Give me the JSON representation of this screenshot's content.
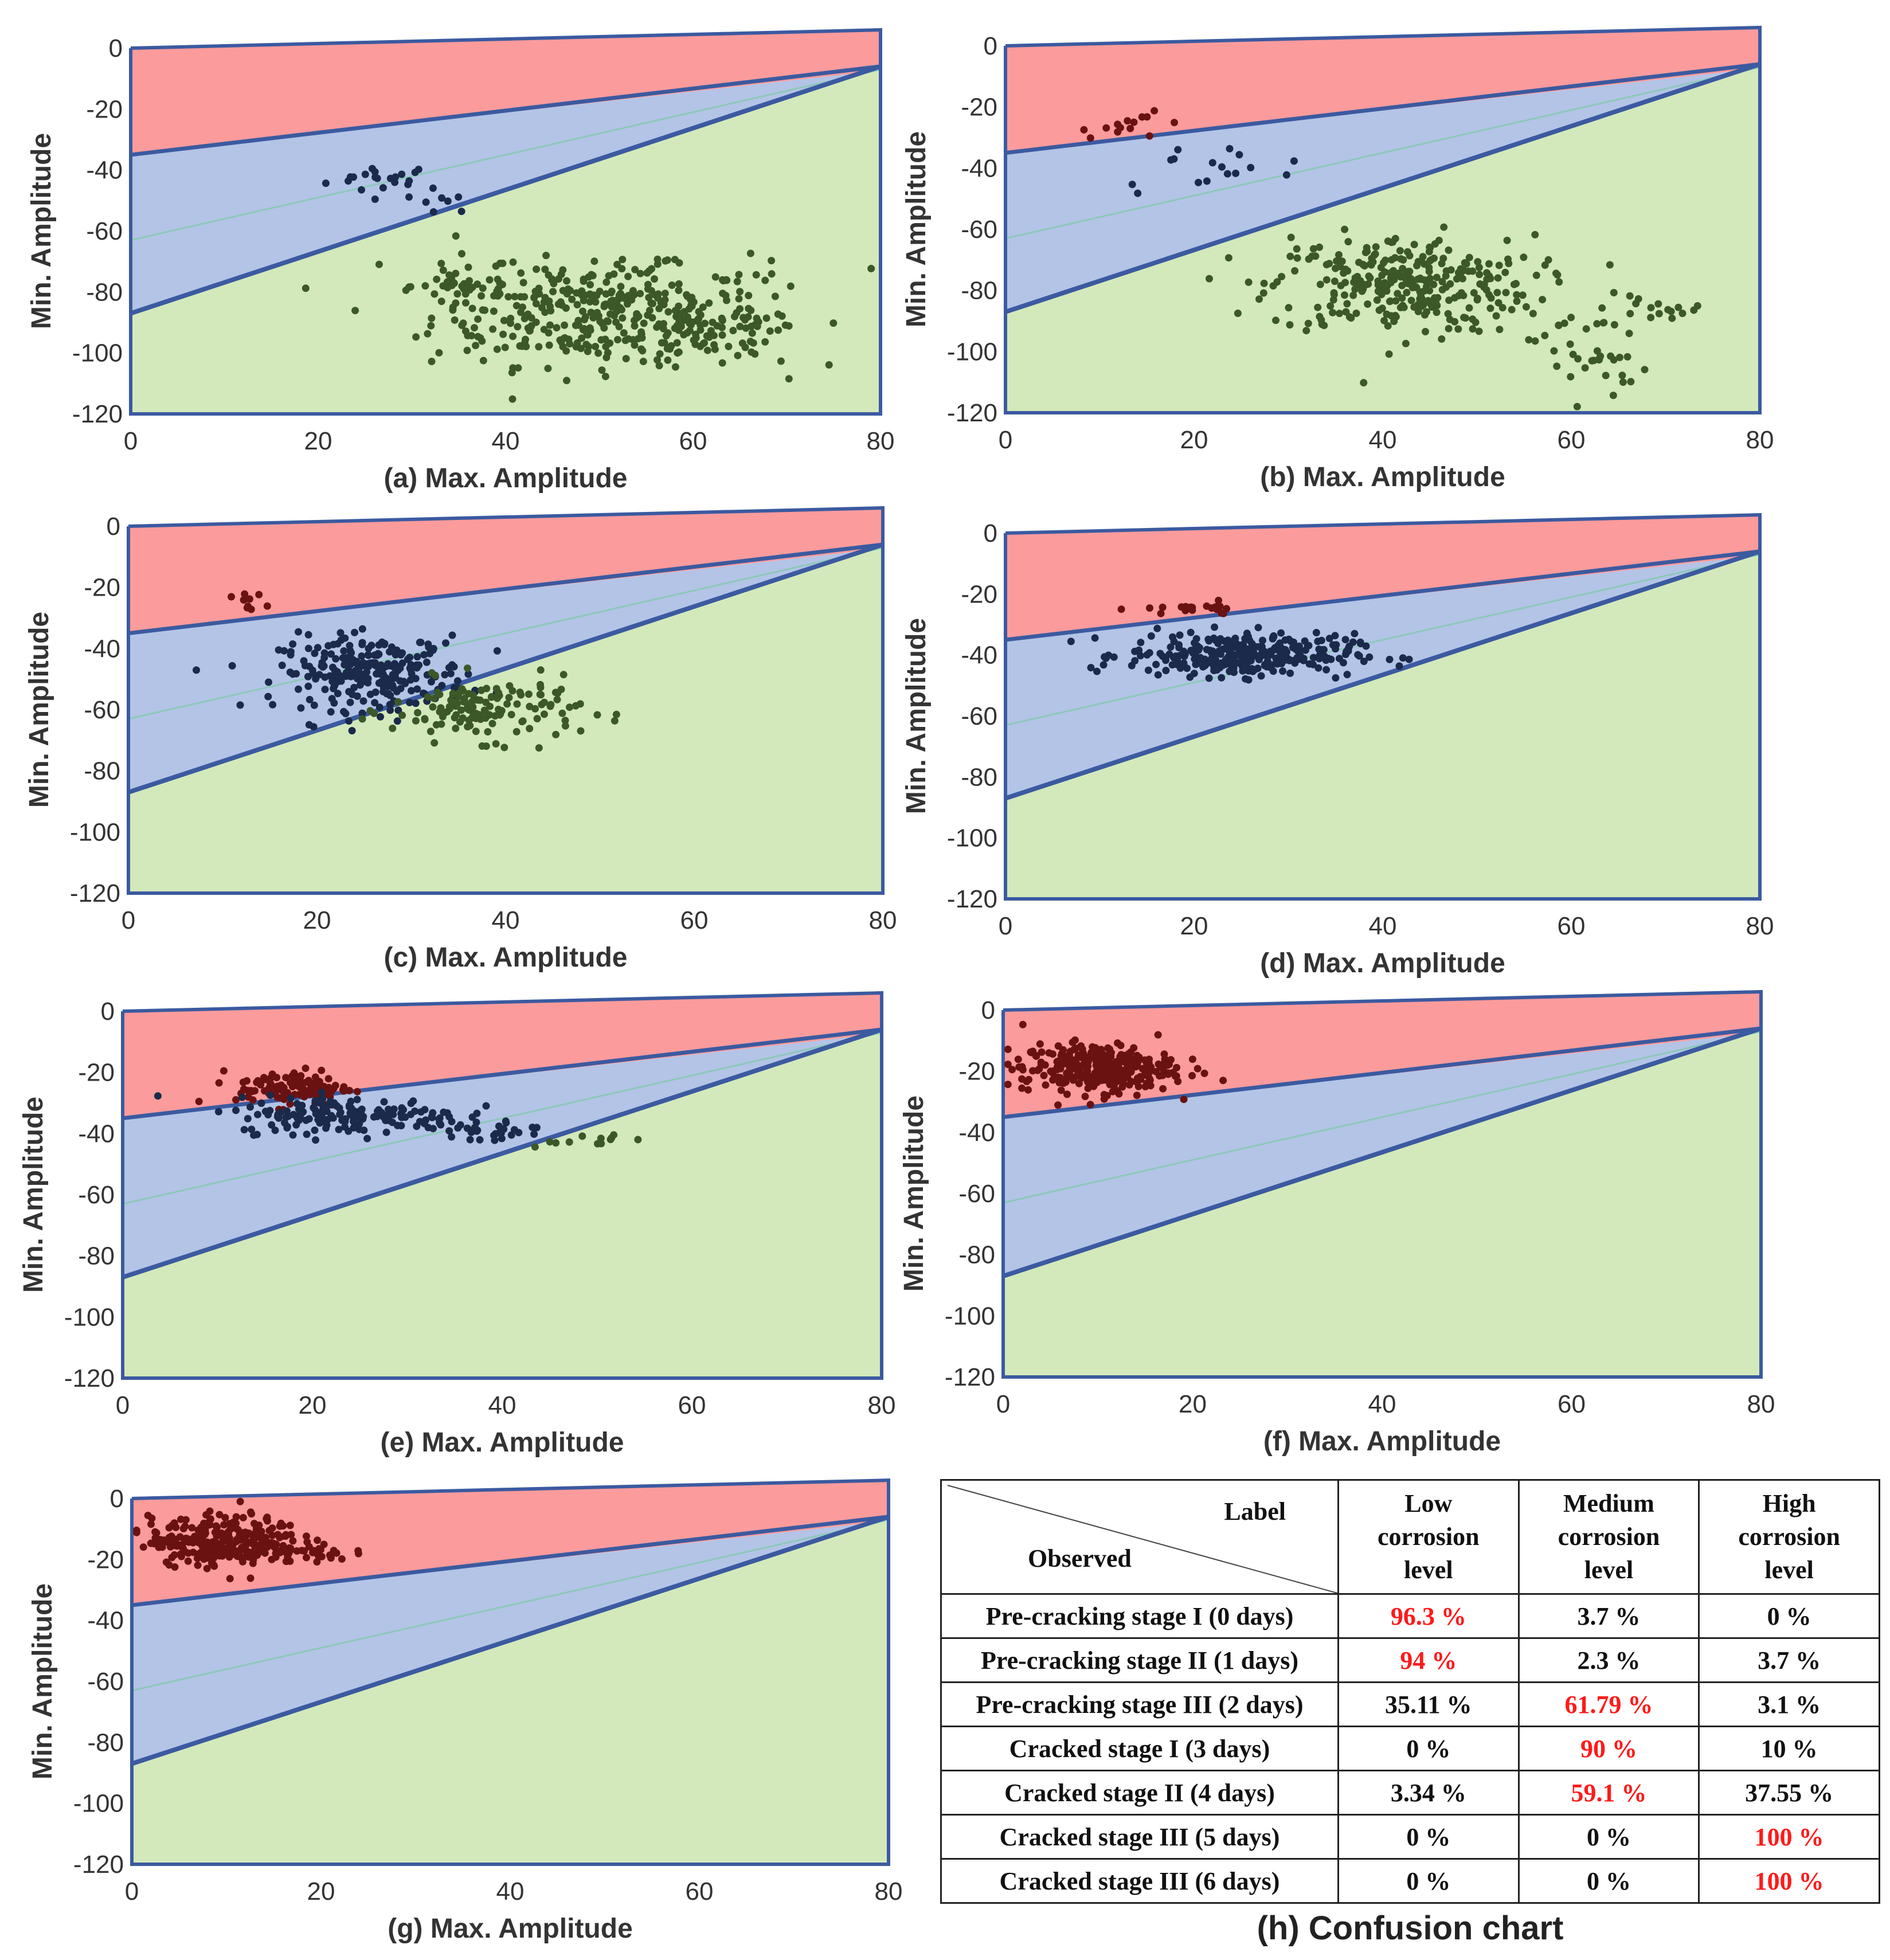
{
  "region_colors": {
    "high": "#fb9b9c",
    "medium": "#b3c4e6",
    "low": "#d3e9bb",
    "boundary": "#3b5aa0",
    "diag": "#8cc9b8",
    "pts_green": "#3c5828",
    "pts_navy": "#1b2a4a",
    "pts_red": "#6a1212"
  },
  "chart_data": [
    {
      "type": "scatter",
      "title": "",
      "xlabel": "(a) Max. Amplitude",
      "ylabel": "Min. Amplitude",
      "xlim": [
        0,
        80
      ],
      "ylim": [
        -120,
        0
      ],
      "xticks": [
        "0",
        "20",
        "40",
        "60",
        "80"
      ],
      "yticks": [
        "0",
        "-20",
        "-40",
        "-60",
        "-80",
        "-100",
        "-120"
      ],
      "regions": [
        "High corrosion level",
        "Medium corrosion level",
        "Low corrosion level"
      ],
      "clusters": [
        {
          "class": "medium",
          "cx": 27,
          "cy": -43,
          "sx": 3,
          "sy": 2.5,
          "n": 20
        },
        {
          "class": "medium",
          "cx": 33,
          "cy": -50,
          "sx": 2,
          "sy": 2,
          "n": 8
        },
        {
          "class": "low",
          "cx": 50,
          "cy": -88,
          "sx": 9,
          "sy": 8,
          "n": 320
        },
        {
          "class": "low",
          "cx": 36,
          "cy": -78,
          "sx": 3,
          "sy": 5,
          "n": 40
        },
        {
          "class": "low",
          "cx": 62,
          "cy": -95,
          "sx": 5,
          "sy": 5,
          "n": 60
        },
        {
          "class": "low",
          "cx": 55,
          "cy": -75,
          "sx": 10,
          "sy": 4,
          "n": 40
        }
      ]
    },
    {
      "type": "scatter",
      "title": "",
      "xlabel": "(b) Max. Amplitude",
      "ylabel": "Min. Amplitude",
      "xlim": [
        0,
        80
      ],
      "ylim": [
        -120,
        0
      ],
      "xticks": [
        "0",
        "20",
        "40",
        "60",
        "80"
      ],
      "yticks": [
        "0",
        "-20",
        "-40",
        "-60",
        "-80",
        "-100",
        "-120"
      ],
      "regions": [
        "High corrosion level",
        "Medium corrosion level",
        "Low corrosion level"
      ],
      "clusters": [
        {
          "class": "high",
          "cx": 14,
          "cy": -26,
          "sx": 3,
          "sy": 2,
          "n": 14
        },
        {
          "class": "medium",
          "cx": 22,
          "cy": -40,
          "sx": 6,
          "sy": 4,
          "n": 16
        },
        {
          "class": "low",
          "cx": 42,
          "cy": -78,
          "sx": 7,
          "sy": 8,
          "n": 300
        },
        {
          "class": "low",
          "cx": 62,
          "cy": -100,
          "sx": 3,
          "sy": 9,
          "n": 40
        },
        {
          "class": "low",
          "cx": 70,
          "cy": -86,
          "sx": 3,
          "sy": 2,
          "n": 14
        }
      ]
    },
    {
      "type": "scatter",
      "title": "",
      "xlabel": "(c) Max. Amplitude",
      "ylabel": "Min. Amplitude",
      "xlim": [
        0,
        80
      ],
      "ylim": [
        -120,
        0
      ],
      "xticks": [
        "0",
        "20",
        "40",
        "60",
        "80"
      ],
      "yticks": [
        "0",
        "-20",
        "-40",
        "-60",
        "-80",
        "-100",
        "-120"
      ],
      "regions": [
        "High corrosion level",
        "Medium corrosion level",
        "Low corrosion level"
      ],
      "clusters": [
        {
          "class": "high",
          "cx": 13,
          "cy": -26,
          "sx": 1,
          "sy": 2,
          "n": 10
        },
        {
          "class": "medium",
          "cx": 26,
          "cy": -48,
          "sx": 5,
          "sy": 6,
          "n": 260
        },
        {
          "class": "low",
          "cx": 38,
          "cy": -60,
          "sx": 5,
          "sy": 5,
          "n": 140
        }
      ]
    },
    {
      "type": "scatter",
      "title": "",
      "xlabel": "(d) Max. Amplitude",
      "ylabel": "Min. Amplitude",
      "xlim": [
        0,
        80
      ],
      "ylim": [
        -120,
        0
      ],
      "xticks": [
        "0",
        "20",
        "40",
        "60",
        "80"
      ],
      "yticks": [
        "0",
        "-20",
        "-40",
        "-60",
        "-80",
        "-100",
        "-120"
      ],
      "regions": [
        "High corrosion level",
        "Medium corrosion level",
        "Low corrosion level"
      ],
      "clusters": [
        {
          "class": "high",
          "cx": 20,
          "cy": -25,
          "sx": 3,
          "sy": 1,
          "n": 20
        },
        {
          "class": "medium",
          "cx": 25,
          "cy": -40,
          "sx": 6,
          "sy": 3.5,
          "n": 320
        }
      ]
    },
    {
      "type": "scatter",
      "title": "",
      "xlabel": "(e) Max. Amplitude",
      "ylabel": "Min. Amplitude",
      "xlim": [
        0,
        80
      ],
      "ylim": [
        -120,
        0
      ],
      "xticks": [
        "0",
        "20",
        "40",
        "60",
        "80"
      ],
      "yticks": [
        "0",
        "-20",
        "-40",
        "-60",
        "-80",
        "-100",
        "-120"
      ],
      "regions": [
        "High corrosion level",
        "Medium corrosion level",
        "Low corrosion level"
      ],
      "clusters": [
        {
          "class": "high",
          "cx": 18,
          "cy": -25,
          "sx": 3,
          "sy": 3,
          "n": 110
        },
        {
          "class": "medium",
          "cx": 24,
          "cy": -34,
          "sx": 6,
          "sy": 3,
          "n": 180
        },
        {
          "class": "medium",
          "cx": 38,
          "cy": -39,
          "sx": 4,
          "sy": 2,
          "n": 30
        },
        {
          "class": "low",
          "cx": 48,
          "cy": -42,
          "sx": 3,
          "sy": 1,
          "n": 12
        }
      ]
    },
    {
      "type": "scatter",
      "title": "",
      "xlabel": "(f) Max. Amplitude",
      "ylabel": "Min. Amplitude",
      "xlim": [
        0,
        80
      ],
      "ylim": [
        -120,
        0
      ],
      "xticks": [
        "0",
        "20",
        "40",
        "60",
        "80"
      ],
      "yticks": [
        "0",
        "-20",
        "-40",
        "-60",
        "-80",
        "-100",
        "-120"
      ],
      "regions": [
        "High corrosion level",
        "Medium corrosion level",
        "Low corrosion level"
      ],
      "clusters": [
        {
          "class": "high",
          "cx": 10,
          "cy": -19,
          "sx": 4,
          "sy": 4,
          "n": 320
        }
      ]
    },
    {
      "type": "scatter",
      "title": "",
      "xlabel": "(g) Max. Amplitude",
      "ylabel": "Min. Amplitude",
      "xlim": [
        0,
        80
      ],
      "ylim": [
        -120,
        0
      ],
      "xticks": [
        "0",
        "20",
        "40",
        "60",
        "80"
      ],
      "yticks": [
        "0",
        "-20",
        "-40",
        "-60",
        "-80",
        "-100",
        "-120"
      ],
      "regions": [
        "High corrosion level",
        "Medium corrosion level",
        "Low corrosion level"
      ],
      "clusters": [
        {
          "class": "high",
          "cx": 10,
          "cy": -14,
          "sx": 4,
          "sy": 4,
          "n": 300
        },
        {
          "class": "high",
          "cx": 19,
          "cy": -18,
          "sx": 2,
          "sy": 1,
          "n": 20
        }
      ]
    },
    {
      "type": "table",
      "title": "(h) Confusion chart",
      "corner_label": "Label",
      "corner_observed": "Observed",
      "columns": [
        [
          "Low",
          "corrosion",
          "level"
        ],
        [
          "Medium",
          "corrosion",
          "level"
        ],
        [
          "High",
          "corrosion",
          "level"
        ]
      ],
      "rows": [
        {
          "label": "Pre-cracking stage I (0 days)",
          "values": [
            "96.3 %",
            "3.7 %",
            "0 %"
          ],
          "highlight": 0
        },
        {
          "label": "Pre-cracking stage II (1 days)",
          "values": [
            "94 %",
            "2.3 %",
            "3.7 %"
          ],
          "highlight": 0
        },
        {
          "label": "Pre-cracking stage III (2 days)",
          "values": [
            "35.11 %",
            "61.79 %",
            "3.1 %"
          ],
          "highlight": 1
        },
        {
          "label": "Cracked stage I (3 days)",
          "values": [
            "0 %",
            "90 %",
            "10 %"
          ],
          "highlight": 1
        },
        {
          "label": "Cracked stage II (4 days)",
          "values": [
            "3.34 %",
            "59.1 %",
            "37.55 %"
          ],
          "highlight": 1
        },
        {
          "label": "Cracked stage III (5 days)",
          "values": [
            "0 %",
            "0 %",
            "100 %"
          ],
          "highlight": 2
        },
        {
          "label": "Cracked stage III (6 days)",
          "values": [
            "0 %",
            "0 %",
            "100 %"
          ],
          "highlight": 2
        }
      ]
    }
  ]
}
